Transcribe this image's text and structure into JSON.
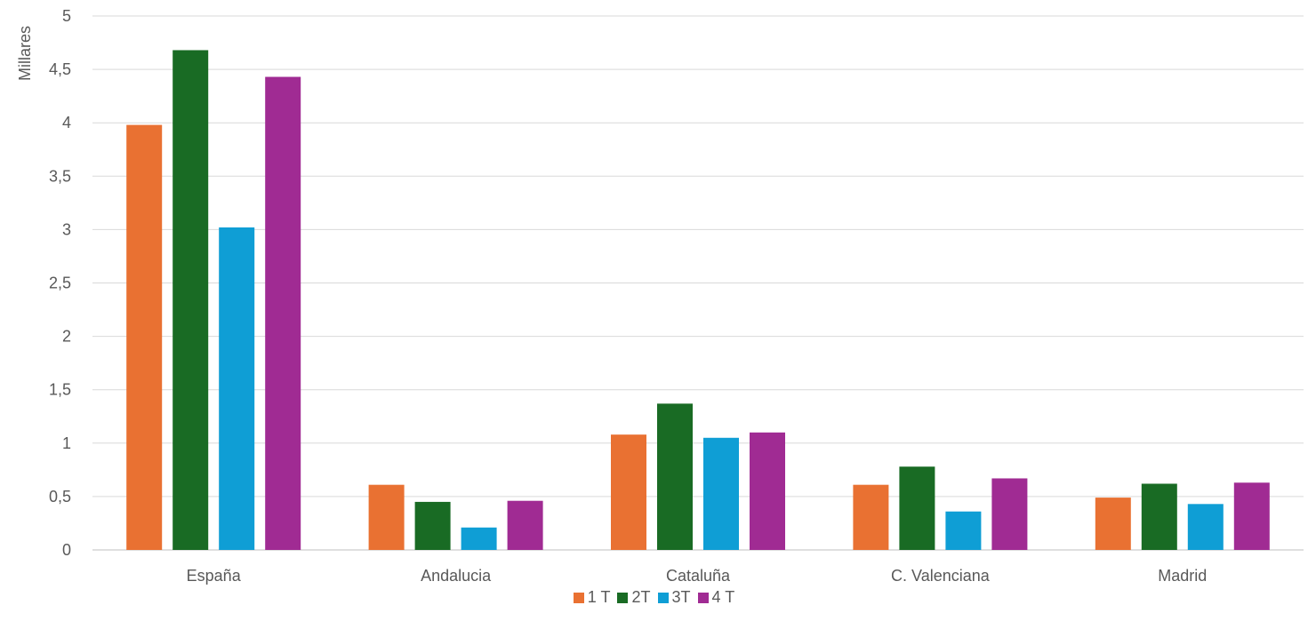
{
  "chart_data": {
    "type": "bar",
    "ylabel": "Millares",
    "xlabel": "",
    "ylim": [
      0,
      5
    ],
    "ytick_step": 0.5,
    "grid": true,
    "legend_position": "bottom",
    "categories": [
      "España",
      "Andalucia",
      "Cataluña",
      "C. Valenciana",
      "Madrid"
    ],
    "series": [
      {
        "name": "1 T",
        "color": "#E97132",
        "values": [
          3.98,
          0.61,
          1.08,
          0.61,
          0.49
        ]
      },
      {
        "name": "2T",
        "color": "#196B24",
        "values": [
          4.68,
          0.45,
          1.37,
          0.78,
          0.62
        ]
      },
      {
        "name": "3T",
        "color": "#0F9ED5",
        "values": [
          3.02,
          0.21,
          1.05,
          0.36,
          0.43
        ]
      },
      {
        "name": "4 T",
        "color": "#A02B93",
        "values": [
          4.43,
          0.46,
          1.1,
          0.67,
          0.63
        ]
      }
    ],
    "ytick_labels": [
      "0",
      "0,5",
      "1",
      "1,5",
      "2",
      "2,5",
      "3",
      "3,5",
      "4",
      "4,5",
      "5"
    ]
  }
}
